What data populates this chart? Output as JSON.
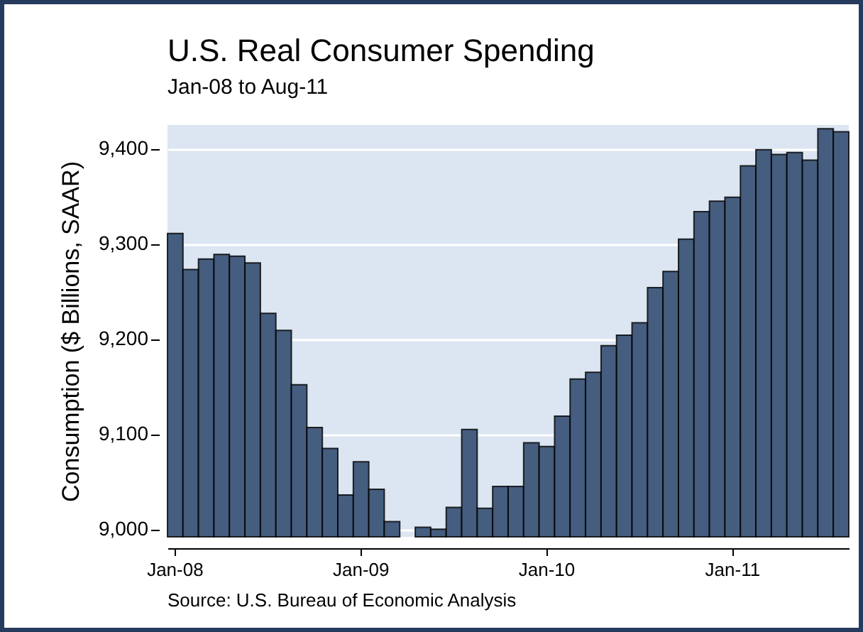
{
  "chart_data": {
    "type": "bar",
    "title": "U.S. Real Consumer Spending",
    "subtitle": "Jan-08 to Aug-11",
    "ylabel": "Consumption ($ Billions, SAAR)",
    "categories": [
      "Jan-08",
      null,
      null,
      null,
      null,
      null,
      null,
      null,
      null,
      null,
      null,
      null,
      "Jan-09",
      null,
      null,
      null,
      null,
      null,
      null,
      null,
      null,
      null,
      null,
      null,
      "Jan-10",
      null,
      null,
      null,
      null,
      null,
      null,
      null,
      null,
      null,
      null,
      null,
      "Jan-11",
      null,
      null,
      null,
      null,
      null,
      null,
      null
    ],
    "values": [
      9311,
      9273,
      9284,
      9289,
      9287,
      9280,
      9227,
      9209,
      9152,
      9107,
      9085,
      9036,
      9071,
      9042,
      9008,
      null,
      9002,
      9000,
      9023,
      9105,
      9022,
      9045,
      9045,
      9091,
      9087,
      9119,
      9158,
      9165,
      9193,
      9204,
      9217,
      9254,
      9271,
      9305,
      9334,
      9345,
      9349,
      9382,
      9399,
      9394,
      9396,
      9388,
      9421,
      9418
    ],
    "color": "#455d7e",
    "ylim": [
      8992,
      9425
    ],
    "yticks": [
      {
        "value": 9000,
        "label": "9,000"
      },
      {
        "value": 9100,
        "label": "9,100"
      },
      {
        "value": 9200,
        "label": "9,200"
      },
      {
        "value": 9300,
        "label": "9,300"
      },
      {
        "value": 9400,
        "label": "9,400"
      }
    ],
    "grid": "y",
    "annotations": [
      "Source: U.S. Bureau of Economic Analysis"
    ]
  }
}
